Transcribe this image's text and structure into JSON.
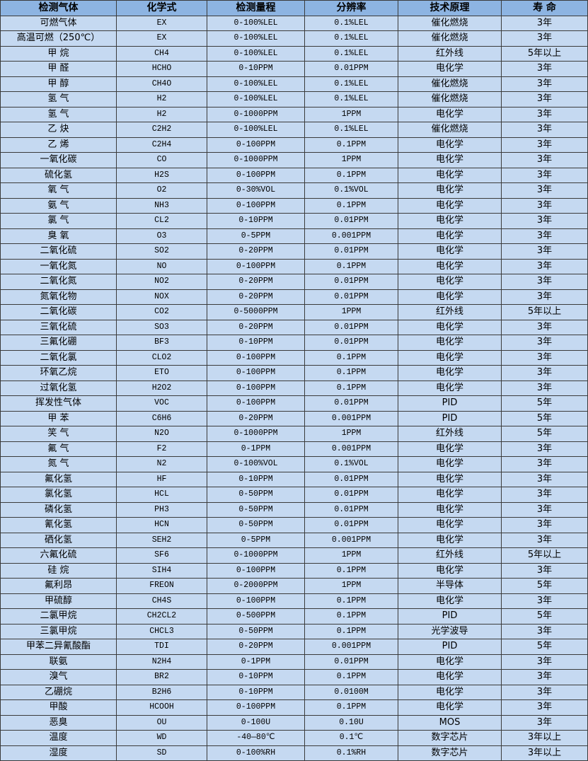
{
  "colors": {
    "header_bg": "#8db4e2",
    "row_bg": "#c5d9f1",
    "border": "#3b3b3b"
  },
  "headers": [
    "检测气体",
    "化学式",
    "检测量程",
    "分辨率",
    "技术原理",
    "寿 命"
  ],
  "rows": [
    [
      "可燃气体",
      "EX",
      "0-100%LEL",
      "0.1%LEL",
      "催化燃烧",
      "3年"
    ],
    [
      "高温可燃（250℃）",
      "EX",
      "0-100%LEL",
      "0.1%LEL",
      "催化燃烧",
      "3年"
    ],
    [
      "甲 烷",
      "CH4",
      "0-100%LEL",
      "0.1%LEL",
      "红外线",
      "5年以上"
    ],
    [
      "甲 醛",
      "HCHO",
      "0-10PPM",
      "0.01PPM",
      "电化学",
      "3年"
    ],
    [
      "甲 醇",
      "CH4O",
      "0-100%LEL",
      "0.1%LEL",
      "催化燃烧",
      "3年"
    ],
    [
      "氢 气",
      "H2",
      "0-100%LEL",
      "0.1%LEL",
      "催化燃烧",
      "3年"
    ],
    [
      "氢 气",
      "H2",
      "0-1000PPM",
      "1PPM",
      "电化学",
      "3年"
    ],
    [
      "乙 炔",
      "C2H2",
      "0-100%LEL",
      "0.1%LEL",
      "催化燃烧",
      "3年"
    ],
    [
      "乙 烯",
      "C2H4",
      "0-100PPM",
      "0.1PPM",
      "电化学",
      "3年"
    ],
    [
      "一氧化碳",
      "CO",
      "0-1000PPM",
      "1PPM",
      "电化学",
      "3年"
    ],
    [
      "硫化氢",
      "H2S",
      "0-100PPM",
      "0.1PPM",
      "电化学",
      "3年"
    ],
    [
      "氧 气",
      "O2",
      "0-30%VOL",
      "0.1%VOL",
      "电化学",
      "3年"
    ],
    [
      "氨 气",
      "NH3",
      "0-100PPM",
      "0.1PPM",
      "电化学",
      "3年"
    ],
    [
      "氯 气",
      "CL2",
      "0-10PPM",
      "0.01PPM",
      "电化学",
      "3年"
    ],
    [
      "臭 氧",
      "O3",
      "0-5PPM",
      "0.001PPM",
      "电化学",
      "3年"
    ],
    [
      "二氧化硫",
      "SO2",
      "0-20PPM",
      "0.01PPM",
      "电化学",
      "3年"
    ],
    [
      "一氧化氮",
      "NO",
      "0-100PPM",
      "0.1PPM",
      "电化学",
      "3年"
    ],
    [
      "二氧化氮",
      "NO2",
      "0-20PPM",
      "0.01PPM",
      "电化学",
      "3年"
    ],
    [
      "氮氧化物",
      "NOX",
      "0-20PPM",
      "0.01PPM",
      "电化学",
      "3年"
    ],
    [
      "二氧化碳",
      "CO2",
      "0-5000PPM",
      "1PPM",
      "红外线",
      "5年以上"
    ],
    [
      "三氧化硫",
      "SO3",
      "0-20PPM",
      "0.01PPM",
      "电化学",
      "3年"
    ],
    [
      "三氟化硼",
      "BF3",
      "0-10PPM",
      "0.01PPM",
      "电化学",
      "3年"
    ],
    [
      "二氧化氯",
      "CLO2",
      "0-100PPM",
      "0.1PPM",
      "电化学",
      "3年"
    ],
    [
      "环氧乙烷",
      "ETO",
      "0-100PPM",
      "0.1PPM",
      "电化学",
      "3年"
    ],
    [
      "过氧化氢",
      "H2O2",
      "0-100PPM",
      "0.1PPM",
      "电化学",
      "3年"
    ],
    [
      "挥发性气体",
      "VOC",
      "0-100PPM",
      "0.01PPM",
      "PID",
      "5年"
    ],
    [
      "甲 苯",
      "C6H6",
      "0-20PPM",
      "0.001PPM",
      "PID",
      "5年"
    ],
    [
      "笑 气",
      "N2O",
      "0-1000PPM",
      "1PPM",
      "红外线",
      "5年"
    ],
    [
      "氟 气",
      "F2",
      "0-1PPM",
      "0.001PPM",
      "电化学",
      "3年"
    ],
    [
      "氮 气",
      "N2",
      "0-100%VOL",
      "0.1%VOL",
      "电化学",
      "3年"
    ],
    [
      "氟化氢",
      "HF",
      "0-10PPM",
      "0.01PPM",
      "电化学",
      "3年"
    ],
    [
      "氯化氢",
      "HCL",
      "0-50PPM",
      "0.01PPM",
      "电化学",
      "3年"
    ],
    [
      "磷化氢",
      "PH3",
      "0-50PPM",
      "0.01PPM",
      "电化学",
      "3年"
    ],
    [
      "氰化氢",
      "HCN",
      "0-50PPM",
      "0.01PPM",
      "电化学",
      "3年"
    ],
    [
      "硒化氢",
      "SEH2",
      "0-5PPM",
      "0.001PPM",
      "电化学",
      "3年"
    ],
    [
      "六氟化硫",
      "SF6",
      "0-1000PPM",
      "1PPM",
      "红外线",
      "5年以上"
    ],
    [
      "硅 烷",
      "SIH4",
      "0-100PPM",
      "0.1PPM",
      "电化学",
      "3年"
    ],
    [
      "氟利昂",
      "FREON",
      "0-2000PPM",
      "1PPM",
      "半导体",
      "5年"
    ],
    [
      "甲硫醇",
      "CH4S",
      "0-100PPM",
      "0.1PPM",
      "电化学",
      "3年"
    ],
    [
      "二氯甲烷",
      "CH2CL2",
      "0-500PPM",
      "0.1PPM",
      "PID",
      "5年"
    ],
    [
      "三氯甲烷",
      "CHCL3",
      "0-50PPM",
      "0.1PPM",
      "光学波导",
      "3年"
    ],
    [
      "甲苯二异氰酸酯",
      "TDI",
      "0-20PPM",
      "0.001PPM",
      "PID",
      "5年"
    ],
    [
      "联氨",
      "N2H4",
      "0-1PPM",
      "0.01PPM",
      "电化学",
      "3年"
    ],
    [
      "溴气",
      "BR2",
      "0-10PPM",
      "0.1PPM",
      "电化学",
      "3年"
    ],
    [
      "乙硼烷",
      "B2H6",
      "0-10PPM",
      "0.0100M",
      "电化学",
      "3年"
    ],
    [
      "甲酸",
      "HCOOH",
      "0-100PPM",
      "0.1PPM",
      "电化学",
      "3年"
    ],
    [
      "恶臭",
      "OU",
      "0-100U",
      "0.10U",
      "MOS",
      "3年"
    ],
    [
      "温度",
      "WD",
      "-40—80℃",
      "0.1℃",
      "数字芯片",
      "3年以上"
    ],
    [
      "湿度",
      "SD",
      "0-100%RH",
      "0.1%RH",
      "数字芯片",
      "3年以上"
    ]
  ]
}
